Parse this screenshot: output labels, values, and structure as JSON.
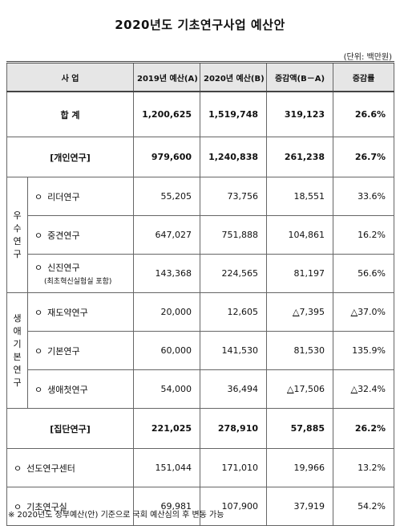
{
  "title": "2020년도 기초연구사업 예산안",
  "unit": "(단위: 백만원)",
  "headers": {
    "project": "사  업",
    "budget2019": "2019년 예산(A)",
    "budget2020": "2020년 예산(B)",
    "change": "증감액(B－A)",
    "rate": "증감률"
  },
  "total": {
    "label": "합  계",
    "b2019": "1,200,625",
    "b2020": "1,519,748",
    "change": "319,123",
    "rate": "26.6%"
  },
  "individual": {
    "label": "[개인연구]",
    "b2019": "979,600",
    "b2020": "1,240,838",
    "change": "261,238",
    "rate": "26.7%"
  },
  "groups": {
    "excellent": "우수연구",
    "lifecycle": "생애기본연구"
  },
  "rows": [
    {
      "label": "리더연구",
      "sub": "",
      "b2019": "55,205",
      "b2020": "73,756",
      "change": "18,551",
      "change_neg": false,
      "rate": "33.6%",
      "rate_neg": false
    },
    {
      "label": "중견연구",
      "sub": "",
      "b2019": "647,027",
      "b2020": "751,888",
      "change": "104,861",
      "change_neg": false,
      "rate": "16.2%",
      "rate_neg": false
    },
    {
      "label": "신진연구",
      "sub": "(최초혁신실험실 포함)",
      "b2019": "143,368",
      "b2020": "224,565",
      "change": "81,197",
      "change_neg": false,
      "rate": "56.6%",
      "rate_neg": false
    },
    {
      "label": "재도약연구",
      "sub": "",
      "b2019": "20,000",
      "b2020": "12,605",
      "change": "7,395",
      "change_neg": true,
      "rate": "37.0%",
      "rate_neg": true
    },
    {
      "label": "기본연구",
      "sub": "",
      "b2019": "60,000",
      "b2020": "141,530",
      "change": "81,530",
      "change_neg": false,
      "rate": "135.9%",
      "rate_neg": false
    },
    {
      "label": "생애첫연구",
      "sub": "",
      "b2019": "54,000",
      "b2020": "36,494",
      "change": "17,506",
      "change_neg": true,
      "rate": "32.4%",
      "rate_neg": true
    }
  ],
  "group_research": {
    "label": "[집단연구]",
    "b2019": "221,025",
    "b2020": "278,910",
    "change": "57,885",
    "rate": "26.2%"
  },
  "extra_rows": [
    {
      "label": "선도연구센터",
      "b2019": "151,044",
      "b2020": "171,010",
      "change": "19,966",
      "rate": "13.2%"
    },
    {
      "label": "기초연구실",
      "b2019": "69,981",
      "b2020": "107,900",
      "change": "37,919",
      "rate": "54.2%"
    }
  ],
  "bullet": "ㅇ",
  "neg_prefix": "△",
  "footnote": "※ 2020년도 정부예산(안) 기준으로 국회 예산심의 후 변동 가능"
}
